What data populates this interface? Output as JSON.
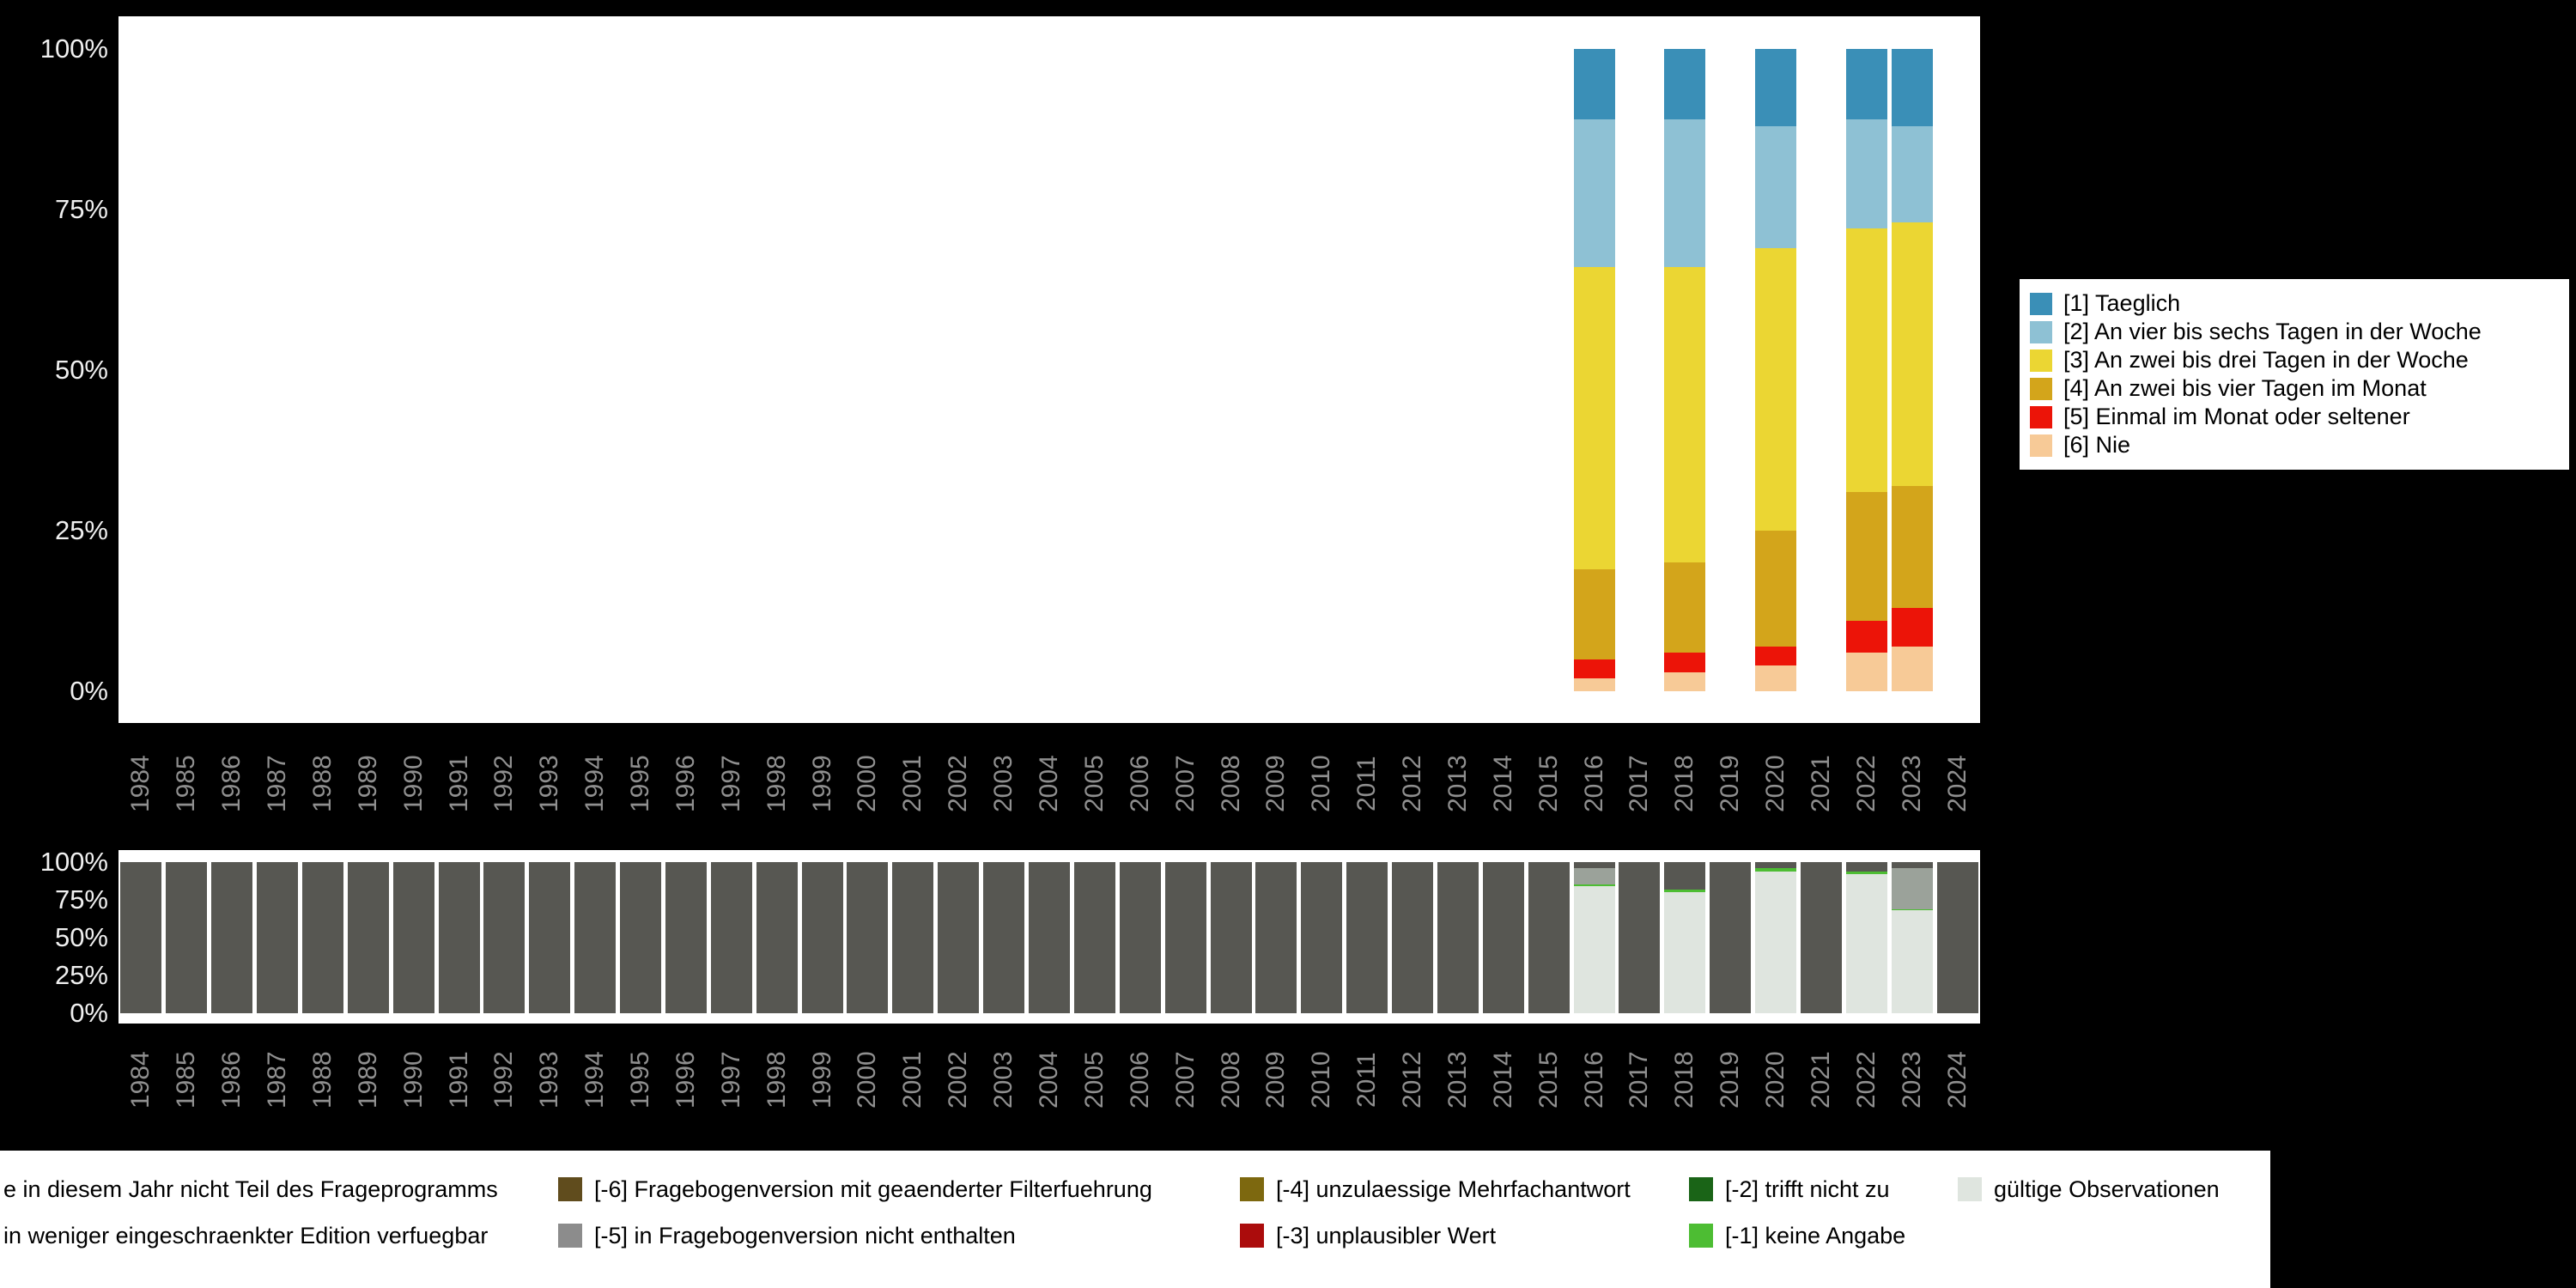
{
  "page": {
    "background_color": "#000000"
  },
  "chart_data": [
    {
      "id": "frequency-chart",
      "type": "bar",
      "stacked": true,
      "title": "",
      "xlabel": "",
      "ylabel": "",
      "ylim": [
        0,
        100
      ],
      "grid": false,
      "legend_position": "right",
      "y_ticks": [
        "0%",
        "25%",
        "50%",
        "75%",
        "100%"
      ],
      "categories": [
        "1984",
        "1985",
        "1986",
        "1987",
        "1988",
        "1989",
        "1990",
        "1991",
        "1992",
        "1993",
        "1994",
        "1995",
        "1996",
        "1997",
        "1998",
        "1999",
        "2000",
        "2001",
        "2002",
        "2003",
        "2004",
        "2005",
        "2006",
        "2007",
        "2008",
        "2009",
        "2010",
        "2011",
        "2012",
        "2013",
        "2014",
        "2015",
        "2016",
        "2017",
        "2018",
        "2019",
        "2020",
        "2021",
        "2022",
        "2023",
        "2024"
      ],
      "stack_order": "last_series_bottom",
      "series": [
        {
          "name": "[1] Taeglich",
          "color": "#3a8fb7",
          "values": {
            "2016": 11,
            "2018": 11,
            "2020": 12,
            "2022": 11,
            "2023": 12
          }
        },
        {
          "name": "[2] An vier bis sechs Tagen in der Woche",
          "color": "#8ec1d4",
          "values": {
            "2016": 23,
            "2018": 23,
            "2020": 19,
            "2022": 17,
            "2023": 15
          }
        },
        {
          "name": "[3] An zwei bis drei Tagen in der Woche",
          "color": "#ebd633",
          "values": {
            "2016": 47,
            "2018": 46,
            "2020": 44,
            "2022": 41,
            "2023": 41
          }
        },
        {
          "name": "[4] An zwei bis vier Tagen im Monat",
          "color": "#d3a51b",
          "values": {
            "2016": 14,
            "2018": 14,
            "2020": 18,
            "2022": 20,
            "2023": 19
          }
        },
        {
          "name": "[5] Einmal im Monat oder seltener",
          "color": "#ec1408",
          "values": {
            "2016": 3,
            "2018": 3,
            "2020": 3,
            "2022": 5,
            "2023": 6
          }
        },
        {
          "name": "[6] Nie",
          "color": "#f7ca97",
          "values": {
            "2016": 2,
            "2018": 3,
            "2020": 4,
            "2022": 6,
            "2023": 7
          }
        }
      ]
    },
    {
      "id": "missing-chart",
      "type": "bar",
      "stacked": true,
      "title": "",
      "xlabel": "",
      "ylabel": "",
      "ylim": [
        0,
        100
      ],
      "grid": false,
      "y_ticks": [
        "0%",
        "25%",
        "50%",
        "75%",
        "100%"
      ],
      "categories": [
        "1984",
        "1985",
        "1986",
        "1987",
        "1988",
        "1989",
        "1990",
        "1991",
        "1992",
        "1993",
        "1994",
        "1995",
        "1996",
        "1997",
        "1998",
        "1999",
        "2000",
        "2001",
        "2002",
        "2003",
        "2004",
        "2005",
        "2006",
        "2007",
        "2008",
        "2009",
        "2010",
        "2011",
        "2012",
        "2013",
        "2014",
        "2015",
        "2016",
        "2017",
        "2018",
        "2019",
        "2020",
        "2021",
        "2022",
        "2023",
        "2024"
      ],
      "stack_order": "first_series_bottom",
      "series": [
        {
          "name": "gültige Observationen",
          "color": "#dfe5df",
          "values": {
            "2016": 84,
            "2018": 80,
            "2020": 94,
            "2022": 92,
            "2023": 68
          }
        },
        {
          "name": "[-1] keine Angabe",
          "color": "#4dbd33",
          "values": {
            "2016": 1,
            "2018": 2,
            "2020": 2,
            "2022": 2,
            "2023": 1
          }
        },
        {
          "name": "in weniger eingeschraenkter Edition verfuegbar",
          "color": "#9ba29a",
          "values": {
            "2016": 11,
            "2023": 27
          }
        },
        {
          "name": "e in diesem Jahr nicht Teil des Frageprogramms",
          "color": "#575752",
          "values": {
            "1984": 100,
            "1985": 100,
            "1986": 100,
            "1987": 100,
            "1988": 100,
            "1989": 100,
            "1990": 100,
            "1991": 100,
            "1992": 100,
            "1993": 100,
            "1994": 100,
            "1995": 100,
            "1996": 100,
            "1997": 100,
            "1998": 100,
            "1999": 100,
            "2000": 100,
            "2001": 100,
            "2002": 100,
            "2003": 100,
            "2004": 100,
            "2005": 100,
            "2006": 100,
            "2007": 100,
            "2008": 100,
            "2009": 100,
            "2010": 100,
            "2011": 100,
            "2012": 100,
            "2013": 100,
            "2014": 100,
            "2015": 100,
            "2016": 4,
            "2017": 100,
            "2018": 18,
            "2019": 100,
            "2020": 4,
            "2021": 100,
            "2022": 6,
            "2023": 4,
            "2024": 100
          }
        }
      ]
    }
  ],
  "legend_main": {
    "items": [
      {
        "label": "[1] Taeglich",
        "color": "#3a8fb7"
      },
      {
        "label": "[2] An vier bis sechs Tagen in der Woche",
        "color": "#8ec1d4"
      },
      {
        "label": "[3] An zwei bis drei Tagen in der Woche",
        "color": "#ebd633"
      },
      {
        "label": "[4] An zwei bis vier Tagen im Monat",
        "color": "#d3a51b"
      },
      {
        "label": "[5] Einmal im Monat oder seltener",
        "color": "#ec1408"
      },
      {
        "label": "[6] Nie",
        "color": "#f7ca97"
      }
    ]
  },
  "legend_missing": {
    "items": [
      {
        "label": "e in diesem Jahr nicht Teil des Frageprogramms",
        "color": null,
        "row": 0,
        "col": 0
      },
      {
        "label": "[-6] Fragebogenversion mit geaenderter Filterfuehrung",
        "color": "#604c1d",
        "row": 0,
        "col": 1
      },
      {
        "label": "[-4] unzulaessige Mehrfachantwort",
        "color": "#7d680f",
        "row": 0,
        "col": 2
      },
      {
        "label": "[-2] trifft nicht zu",
        "color": "#1a6417",
        "row": 0,
        "col": 3
      },
      {
        "label": "gültige Observationen",
        "color": "#dfe5df",
        "row": 0,
        "col": 4
      },
      {
        "label": "in weniger eingeschraenkter Edition verfuegbar",
        "color": null,
        "row": 1,
        "col": 0
      },
      {
        "label": "[-5] in Fragebogenversion nicht enthalten",
        "color": "#8c8c8c",
        "row": 1,
        "col": 1
      },
      {
        "label": "[-3] unplausibler Wert",
        "color": "#ab0c0c",
        "row": 1,
        "col": 2
      },
      {
        "label": "[-1] keine Angabe",
        "color": "#4dbd33",
        "row": 1,
        "col": 3
      }
    ]
  }
}
